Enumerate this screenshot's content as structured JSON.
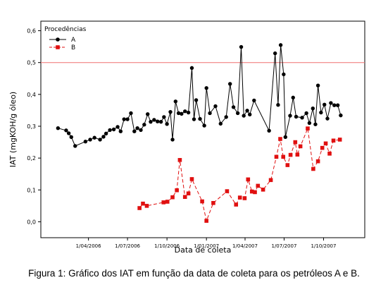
{
  "caption": "Figura 1: Gráfico dos IAT em função da data de coleta para os petróleos A e B.",
  "chart_data": {
    "type": "line",
    "xlabel": "Data de coleta",
    "ylabel": "IAT (mgKOH/g óleo)",
    "ylim": [
      -0.05,
      0.63
    ],
    "xlim": [
      "2005-12-11",
      "2008-01-05"
    ],
    "x_ticks": [
      {
        "date": "2006-04-01",
        "label": "1/04/2006"
      },
      {
        "date": "2006-07-01",
        "label": "1/07/2006"
      },
      {
        "date": "2006-10-01",
        "label": "1/10/2006"
      },
      {
        "date": "2007-01-01",
        "label": "1/01/2007"
      },
      {
        "date": "2007-04-01",
        "label": "1/04/2007"
      },
      {
        "date": "2007-07-01",
        "label": "1/07/2007"
      },
      {
        "date": "2007-10-01",
        "label": "1/10/2007"
      }
    ],
    "y_ticks": [
      {
        "value": 0.0,
        "label": "0,0"
      },
      {
        "value": 0.1,
        "label": "0,1"
      },
      {
        "value": 0.2,
        "label": "0,2"
      },
      {
        "value": 0.3,
        "label": "0,3"
      },
      {
        "value": 0.4,
        "label": "0,4"
      },
      {
        "value": 0.5,
        "label": "0,5"
      },
      {
        "value": 0.6,
        "label": "0,6"
      }
    ],
    "reference_line": {
      "y": 0.5,
      "color": "#f07070"
    },
    "grid": false,
    "legend": {
      "title": "Procedências",
      "placement": "top-left"
    },
    "series": [
      {
        "name": "A",
        "color": "#000000",
        "marker": "circle",
        "line": "solid",
        "points": [
          {
            "x": "2006-01-20",
            "y": 0.294
          },
          {
            "x": "2006-02-08",
            "y": 0.287
          },
          {
            "x": "2006-02-14",
            "y": 0.278
          },
          {
            "x": "2006-02-20",
            "y": 0.266
          },
          {
            "x": "2006-03-01",
            "y": 0.238
          },
          {
            "x": "2006-03-25",
            "y": 0.252
          },
          {
            "x": "2006-04-05",
            "y": 0.258
          },
          {
            "x": "2006-04-15",
            "y": 0.264
          },
          {
            "x": "2006-04-28",
            "y": 0.258
          },
          {
            "x": "2006-05-06",
            "y": 0.267
          },
          {
            "x": "2006-05-12",
            "y": 0.277
          },
          {
            "x": "2006-05-21",
            "y": 0.288
          },
          {
            "x": "2006-05-30",
            "y": 0.29
          },
          {
            "x": "2006-06-08",
            "y": 0.298
          },
          {
            "x": "2006-06-15",
            "y": 0.284
          },
          {
            "x": "2006-06-23",
            "y": 0.322
          },
          {
            "x": "2006-07-01",
            "y": 0.322
          },
          {
            "x": "2006-07-09",
            "y": 0.341
          },
          {
            "x": "2006-07-17",
            "y": 0.284
          },
          {
            "x": "2006-07-24",
            "y": 0.294
          },
          {
            "x": "2006-08-01",
            "y": 0.288
          },
          {
            "x": "2006-08-09",
            "y": 0.305
          },
          {
            "x": "2006-08-17",
            "y": 0.338
          },
          {
            "x": "2006-08-24",
            "y": 0.314
          },
          {
            "x": "2006-09-01",
            "y": 0.32
          },
          {
            "x": "2006-09-09",
            "y": 0.315
          },
          {
            "x": "2006-09-17",
            "y": 0.314
          },
          {
            "x": "2006-09-24",
            "y": 0.329
          },
          {
            "x": "2006-10-01",
            "y": 0.307
          },
          {
            "x": "2006-10-09",
            "y": 0.345
          },
          {
            "x": "2006-10-14",
            "y": 0.258
          },
          {
            "x": "2006-10-21",
            "y": 0.378
          },
          {
            "x": "2006-10-28",
            "y": 0.341
          },
          {
            "x": "2006-11-04",
            "y": 0.339
          },
          {
            "x": "2006-11-12",
            "y": 0.347
          },
          {
            "x": "2006-11-20",
            "y": 0.343
          },
          {
            "x": "2006-11-28",
            "y": 0.483
          },
          {
            "x": "2006-12-03",
            "y": 0.322
          },
          {
            "x": "2006-12-08",
            "y": 0.382
          },
          {
            "x": "2006-12-17",
            "y": 0.323
          },
          {
            "x": "2006-12-27",
            "y": 0.302
          },
          {
            "x": "2007-01-01",
            "y": 0.42
          },
          {
            "x": "2007-01-09",
            "y": 0.341
          },
          {
            "x": "2007-01-22",
            "y": 0.363
          },
          {
            "x": "2007-02-03",
            "y": 0.308
          },
          {
            "x": "2007-02-16",
            "y": 0.329
          },
          {
            "x": "2007-02-25",
            "y": 0.433
          },
          {
            "x": "2007-03-05",
            "y": 0.36
          },
          {
            "x": "2007-03-15",
            "y": 0.341
          },
          {
            "x": "2007-03-23",
            "y": 0.549
          },
          {
            "x": "2007-03-29",
            "y": 0.333
          },
          {
            "x": "2007-04-06",
            "y": 0.349
          },
          {
            "x": "2007-04-12",
            "y": 0.337
          },
          {
            "x": "2007-04-22",
            "y": 0.381
          },
          {
            "x": "2007-05-27",
            "y": 0.286
          },
          {
            "x": "2007-06-10",
            "y": 0.529
          },
          {
            "x": "2007-06-17",
            "y": 0.367
          },
          {
            "x": "2007-06-23",
            "y": 0.555
          },
          {
            "x": "2007-06-30",
            "y": 0.463
          },
          {
            "x": "2007-07-04",
            "y": 0.266
          },
          {
            "x": "2007-07-15",
            "y": 0.333
          },
          {
            "x": "2007-07-22",
            "y": 0.39
          },
          {
            "x": "2007-07-29",
            "y": 0.33
          },
          {
            "x": "2007-08-12",
            "y": 0.327
          },
          {
            "x": "2007-08-22",
            "y": 0.341
          },
          {
            "x": "2007-08-29",
            "y": 0.31
          },
          {
            "x": "2007-09-06",
            "y": 0.356
          },
          {
            "x": "2007-09-12",
            "y": 0.306
          },
          {
            "x": "2007-09-18",
            "y": 0.428
          },
          {
            "x": "2007-09-25",
            "y": 0.343
          },
          {
            "x": "2007-10-03",
            "y": 0.368
          },
          {
            "x": "2007-10-10",
            "y": 0.324
          },
          {
            "x": "2007-10-18",
            "y": 0.373
          },
          {
            "x": "2007-10-26",
            "y": 0.366
          },
          {
            "x": "2007-11-03",
            "y": 0.366
          },
          {
            "x": "2007-11-10",
            "y": 0.334
          }
        ]
      },
      {
        "name": "B",
        "color": "#e01010",
        "marker": "square",
        "line": "dashed",
        "points": [
          {
            "x": "2006-07-29",
            "y": 0.043
          },
          {
            "x": "2006-08-06",
            "y": 0.057
          },
          {
            "x": "2006-08-15",
            "y": 0.05
          },
          {
            "x": "2006-09-23",
            "y": 0.061
          },
          {
            "x": "2006-10-02",
            "y": 0.063
          },
          {
            "x": "2006-10-14",
            "y": 0.077
          },
          {
            "x": "2006-10-24",
            "y": 0.099
          },
          {
            "x": "2006-10-31",
            "y": 0.194
          },
          {
            "x": "2006-11-12",
            "y": 0.078
          },
          {
            "x": "2006-11-20",
            "y": 0.089
          },
          {
            "x": "2006-11-28",
            "y": 0.134
          },
          {
            "x": "2006-12-22",
            "y": 0.064
          },
          {
            "x": "2007-01-01",
            "y": 0.003
          },
          {
            "x": "2007-01-17",
            "y": 0.059
          },
          {
            "x": "2007-02-18",
            "y": 0.096
          },
          {
            "x": "2007-03-11",
            "y": 0.054
          },
          {
            "x": "2007-03-20",
            "y": 0.076
          },
          {
            "x": "2007-03-31",
            "y": 0.074
          },
          {
            "x": "2007-04-08",
            "y": 0.133
          },
          {
            "x": "2007-04-17",
            "y": 0.095
          },
          {
            "x": "2007-04-24",
            "y": 0.093
          },
          {
            "x": "2007-05-01",
            "y": 0.113
          },
          {
            "x": "2007-05-13",
            "y": 0.101
          },
          {
            "x": "2007-05-31",
            "y": 0.131
          },
          {
            "x": "2007-06-13",
            "y": 0.204
          },
          {
            "x": "2007-06-22",
            "y": 0.26
          },
          {
            "x": "2007-06-29",
            "y": 0.204
          },
          {
            "x": "2007-07-09",
            "y": 0.178
          },
          {
            "x": "2007-07-16",
            "y": 0.21
          },
          {
            "x": "2007-07-27",
            "y": 0.25
          },
          {
            "x": "2007-08-01",
            "y": 0.211
          },
          {
            "x": "2007-08-08",
            "y": 0.237
          },
          {
            "x": "2007-08-25",
            "y": 0.293
          },
          {
            "x": "2007-09-07",
            "y": 0.166
          },
          {
            "x": "2007-09-18",
            "y": 0.19
          },
          {
            "x": "2007-09-28",
            "y": 0.232
          },
          {
            "x": "2007-10-06",
            "y": 0.246
          },
          {
            "x": "2007-10-15",
            "y": 0.214
          },
          {
            "x": "2007-10-24",
            "y": 0.255
          },
          {
            "x": "2007-11-08",
            "y": 0.258
          }
        ]
      }
    ]
  }
}
